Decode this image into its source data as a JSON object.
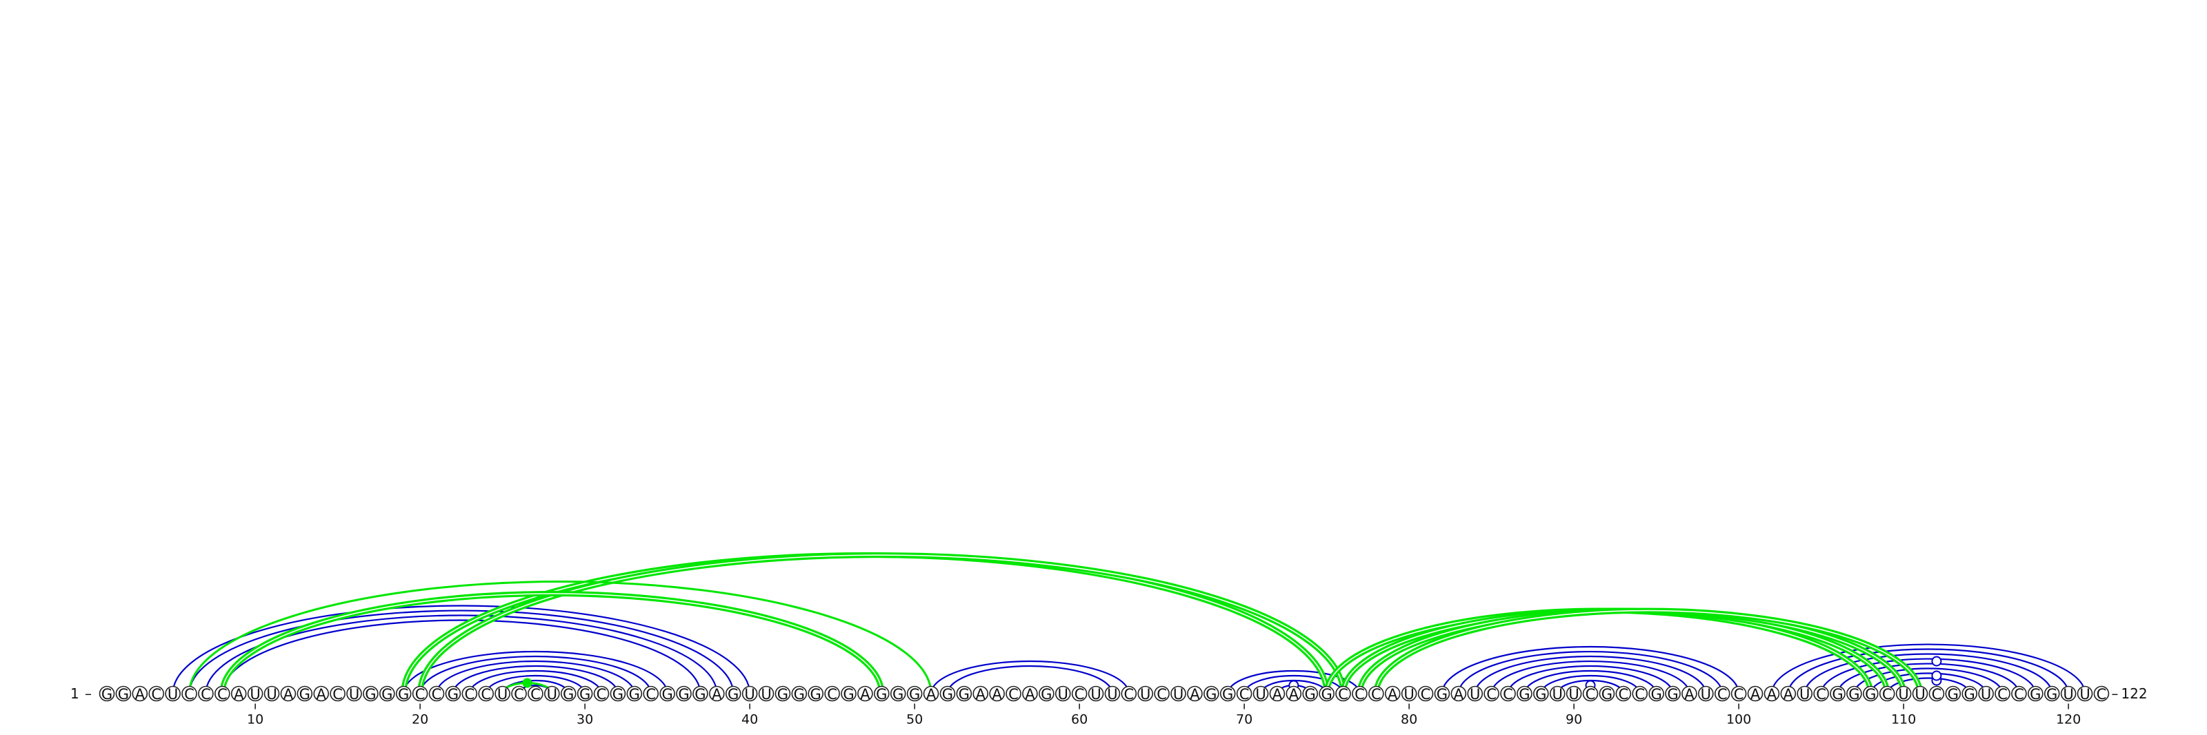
{
  "sequence": "GGACUCCCAUUAGACUGGGCCGCCUCCUGGCGGCGGGAGUUGGGCGAGGGAGGAACAGUCUUCUCUAGGCUAAGGCCCAUCGAUCCGGUUCGCCGGAUCCAAAUCGGGCUUCGGUCCGGUUC",
  "start_label": "1",
  "end_label": "122",
  "ticks": [
    10,
    20,
    30,
    40,
    50,
    60,
    70,
    80,
    90,
    100,
    110,
    120
  ],
  "colors": {
    "blue": "#0000cc",
    "green": "#00e600",
    "circle_stroke": "#222222"
  },
  "blue_helices": [
    {
      "i": 5,
      "j": 40,
      "len": 4
    },
    {
      "i": 19,
      "j": 35,
      "len": 1
    },
    {
      "i": 20,
      "j": 34,
      "len": 7
    },
    {
      "i": 51,
      "j": 63,
      "len": 2
    },
    {
      "i": 69,
      "j": 77,
      "len": 4
    },
    {
      "i": 82,
      "j": 100,
      "len": 8
    },
    {
      "i": 102,
      "j": 121,
      "len": 8
    }
  ],
  "green_arcs": [
    {
      "i": 19,
      "j": 75,
      "double": true
    },
    {
      "i": 20,
      "j": 76,
      "double": true
    },
    {
      "i": 8,
      "j": 48,
      "double": true
    },
    {
      "i": 6,
      "j": 51,
      "double": false
    },
    {
      "i": 75,
      "j": 108,
      "double": true
    },
    {
      "i": 76,
      "j": 109,
      "double": true
    },
    {
      "i": 77,
      "j": 110,
      "double": true
    },
    {
      "i": 78,
      "j": 111,
      "double": true
    },
    {
      "i": 25,
      "j": 28,
      "double": false,
      "dot": true
    }
  ],
  "markers": [
    {
      "i": 72,
      "j": 74
    },
    {
      "i": 90,
      "j": 92
    },
    {
      "i": 110,
      "j": 114
    },
    {
      "i": 109,
      "j": 115
    },
    {
      "i": 106,
      "j": 118
    }
  ]
}
